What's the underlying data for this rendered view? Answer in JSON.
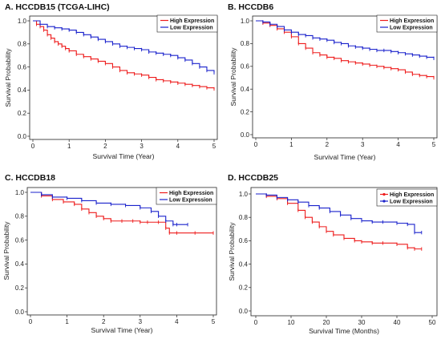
{
  "figure": {
    "colors": {
      "high": "#ee1c1c",
      "low": "#1a22cc"
    }
  },
  "chart_data": [
    {
      "type": "line",
      "title": "A.  HCCDB15 (TCGA-LIHC)",
      "xlabel": "Survival Time (Year)",
      "ylabel": "Survival Probability",
      "xlim": [
        0,
        5
      ],
      "ylim": [
        0,
        1
      ],
      "xticks": [
        0,
        1,
        2,
        3,
        4,
        5
      ],
      "yticks": [
        0.0,
        0.2,
        0.4,
        0.6,
        0.8,
        1.0
      ],
      "grid": false,
      "legend": "top-right",
      "series": [
        {
          "name": "High Expression",
          "color": "#ee1c1c",
          "x": [
            0,
            0.1,
            0.2,
            0.3,
            0.4,
            0.5,
            0.6,
            0.7,
            0.8,
            0.9,
            1.0,
            1.2,
            1.4,
            1.6,
            1.8,
            2.0,
            2.2,
            2.4,
            2.6,
            2.8,
            3.0,
            3.2,
            3.4,
            3.6,
            3.8,
            4.0,
            4.2,
            4.4,
            4.6,
            4.8,
            5.0
          ],
          "y": [
            1.0,
            0.97,
            0.95,
            0.92,
            0.88,
            0.85,
            0.82,
            0.8,
            0.78,
            0.76,
            0.74,
            0.71,
            0.69,
            0.67,
            0.65,
            0.63,
            0.6,
            0.57,
            0.55,
            0.54,
            0.53,
            0.51,
            0.49,
            0.48,
            0.47,
            0.46,
            0.45,
            0.44,
            0.43,
            0.42,
            0.41
          ]
        },
        {
          "name": "Low Expression",
          "color": "#1a22cc",
          "x": [
            0,
            0.2,
            0.4,
            0.6,
            0.8,
            1.0,
            1.2,
            1.4,
            1.6,
            1.8,
            2.0,
            2.2,
            2.4,
            2.6,
            2.8,
            3.0,
            3.2,
            3.4,
            3.6,
            3.8,
            4.0,
            4.2,
            4.4,
            4.6,
            4.8,
            5.0
          ],
          "y": [
            1.0,
            0.97,
            0.95,
            0.94,
            0.93,
            0.92,
            0.9,
            0.88,
            0.86,
            0.84,
            0.82,
            0.8,
            0.78,
            0.77,
            0.76,
            0.75,
            0.73,
            0.72,
            0.71,
            0.7,
            0.68,
            0.66,
            0.63,
            0.6,
            0.57,
            0.55
          ]
        }
      ]
    },
    {
      "type": "line",
      "title": "B.  HCCDB6",
      "xlabel": "Survival Time (Year)",
      "ylabel": "Survival Probability",
      "xlim": [
        0,
        5
      ],
      "ylim": [
        0,
        1
      ],
      "xticks": [
        0,
        1,
        2,
        3,
        4,
        5
      ],
      "yticks": [
        0.0,
        0.2,
        0.4,
        0.6,
        0.8,
        1.0
      ],
      "grid": false,
      "legend": "top-right",
      "series": [
        {
          "name": "High Expression",
          "color": "#ee1c1c",
          "x": [
            0,
            0.2,
            0.4,
            0.6,
            0.8,
            1.0,
            1.2,
            1.4,
            1.6,
            1.8,
            2.0,
            2.2,
            2.4,
            2.6,
            2.8,
            3.0,
            3.2,
            3.4,
            3.6,
            3.8,
            4.0,
            4.2,
            4.4,
            4.6,
            4.8,
            5.0
          ],
          "y": [
            1.0,
            0.98,
            0.96,
            0.93,
            0.9,
            0.86,
            0.8,
            0.76,
            0.72,
            0.7,
            0.68,
            0.67,
            0.65,
            0.64,
            0.63,
            0.62,
            0.61,
            0.6,
            0.59,
            0.58,
            0.57,
            0.55,
            0.53,
            0.52,
            0.51,
            0.5
          ]
        },
        {
          "name": "Low Expression",
          "color": "#1a22cc",
          "x": [
            0,
            0.2,
            0.4,
            0.6,
            0.8,
            1.0,
            1.2,
            1.4,
            1.6,
            1.8,
            2.0,
            2.2,
            2.4,
            2.6,
            2.8,
            3.0,
            3.2,
            3.4,
            3.6,
            3.8,
            4.0,
            4.2,
            4.4,
            4.6,
            4.8,
            5.0
          ],
          "y": [
            1.0,
            0.99,
            0.97,
            0.95,
            0.92,
            0.9,
            0.88,
            0.87,
            0.85,
            0.84,
            0.83,
            0.81,
            0.8,
            0.78,
            0.77,
            0.76,
            0.75,
            0.74,
            0.74,
            0.73,
            0.72,
            0.71,
            0.7,
            0.69,
            0.68,
            0.67
          ]
        }
      ]
    },
    {
      "type": "line",
      "title": "C.  HCCDB18",
      "xlabel": "Survival Time (Year)",
      "ylabel": "Survival Probability",
      "xlim": [
        0,
        5
      ],
      "ylim": [
        0,
        1
      ],
      "xticks": [
        0,
        1,
        2,
        3,
        4,
        5
      ],
      "yticks": [
        0.0,
        0.2,
        0.4,
        0.6,
        0.8,
        1.0
      ],
      "grid": false,
      "legend": "top-right",
      "series": [
        {
          "name": "High Expression",
          "color": "#ee1c1c",
          "x": [
            0,
            0.3,
            0.6,
            0.9,
            1.2,
            1.4,
            1.6,
            1.8,
            2.0,
            2.2,
            2.5,
            2.8,
            3.0,
            3.2,
            3.5,
            3.7,
            3.8,
            4.0,
            4.5,
            5.0
          ],
          "y": [
            1.0,
            0.97,
            0.94,
            0.92,
            0.9,
            0.86,
            0.83,
            0.8,
            0.78,
            0.76,
            0.76,
            0.76,
            0.75,
            0.75,
            0.75,
            0.7,
            0.66,
            0.66,
            0.66,
            0.66
          ]
        },
        {
          "name": "Low Expression",
          "color": "#1a22cc",
          "x": [
            0,
            0.3,
            0.6,
            1.0,
            1.4,
            1.8,
            2.2,
            2.6,
            3.0,
            3.3,
            3.5,
            3.7,
            3.9,
            4.0,
            4.3
          ],
          "y": [
            1.0,
            0.98,
            0.96,
            0.95,
            0.93,
            0.91,
            0.9,
            0.89,
            0.87,
            0.84,
            0.8,
            0.76,
            0.73,
            0.73,
            0.73
          ]
        }
      ]
    },
    {
      "type": "line",
      "title": "D.  HCCDB25",
      "xlabel": "Survival Time (Months)",
      "ylabel": "Survival Probability",
      "xlim": [
        0,
        50
      ],
      "ylim": [
        0,
        1
      ],
      "xticks": [
        0,
        10,
        20,
        30,
        40,
        50
      ],
      "yticks": [
        0.0,
        0.2,
        0.4,
        0.6,
        0.8,
        1.0
      ],
      "grid": false,
      "legend": "top-right",
      "series": [
        {
          "name": "High Expression",
          "color": "#ee1c1c",
          "x": [
            0,
            3,
            6,
            9,
            12,
            14,
            16,
            18,
            20,
            22,
            25,
            28,
            30,
            33,
            36,
            40,
            43,
            45,
            47
          ],
          "y": [
            1.0,
            0.98,
            0.96,
            0.92,
            0.86,
            0.8,
            0.76,
            0.72,
            0.68,
            0.65,
            0.62,
            0.6,
            0.59,
            0.58,
            0.58,
            0.57,
            0.54,
            0.53,
            0.53
          ]
        },
        {
          "name": "Low Expression",
          "color": "#1a22cc",
          "x": [
            0,
            3,
            6,
            9,
            12,
            15,
            18,
            21,
            24,
            27,
            30,
            33,
            36,
            40,
            43,
            45,
            47
          ],
          "y": [
            1.0,
            0.99,
            0.97,
            0.95,
            0.93,
            0.9,
            0.88,
            0.85,
            0.82,
            0.79,
            0.77,
            0.76,
            0.76,
            0.75,
            0.74,
            0.67,
            0.67
          ]
        }
      ]
    }
  ]
}
